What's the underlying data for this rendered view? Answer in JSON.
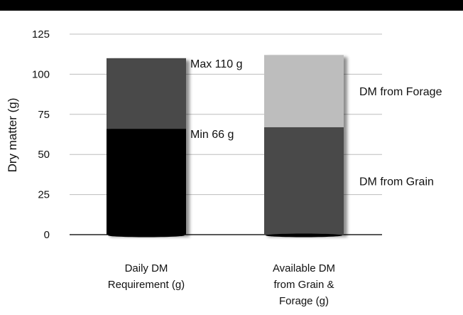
{
  "chart_data": {
    "type": "bar",
    "stacked": true,
    "title": "",
    "xlabel": "",
    "ylabel": "Dry matter (g)",
    "ylim": [
      0,
      125
    ],
    "yticks": [
      0,
      25,
      50,
      75,
      100,
      125
    ],
    "grid": true,
    "categories": [
      [
        "Daily DM",
        "Requirement (g)"
      ],
      [
        "Available DM",
        "from Grain &",
        "Forage (g)"
      ]
    ],
    "bars": [
      {
        "segments": [
          {
            "value": 66,
            "color": "#000000"
          },
          {
            "value": 44,
            "color": "#4a4a4a"
          }
        ],
        "annotations": [
          {
            "text": "Max 110 g",
            "at": 110
          },
          {
            "text": "Min 66 g",
            "at": 66
          }
        ]
      },
      {
        "segments": [
          {
            "value": 67,
            "color": "#4a4a4a",
            "label": "DM from Grain"
          },
          {
            "value": 45,
            "color": "#bdbdbd",
            "label": "DM from Forage"
          }
        ]
      }
    ]
  }
}
